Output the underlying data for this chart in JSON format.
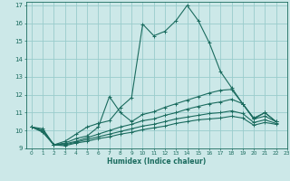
{
  "xlabel": "Humidex (Indice chaleur)",
  "xlim": [
    -0.5,
    23
  ],
  "ylim": [
    9,
    17.2
  ],
  "xticks": [
    0,
    1,
    2,
    3,
    4,
    5,
    6,
    7,
    8,
    9,
    10,
    11,
    12,
    13,
    14,
    15,
    16,
    17,
    18,
    19,
    20,
    21,
    22,
    23
  ],
  "yticks": [
    9,
    10,
    11,
    12,
    13,
    14,
    15,
    16,
    17
  ],
  "bg_color": "#cce8e8",
  "grid_color": "#99cccc",
  "line_color": "#1a6b5e",
  "series": [
    {
      "x": [
        0,
        1,
        2,
        3,
        4,
        5,
        6,
        7,
        8,
        9,
        10,
        11,
        12,
        13,
        14,
        15,
        16,
        17,
        18,
        19,
        20,
        21,
        22
      ],
      "y": [
        10.2,
        10.1,
        9.2,
        9.4,
        9.8,
        10.2,
        10.4,
        10.55,
        11.3,
        11.85,
        15.95,
        15.3,
        15.55,
        16.15,
        17.0,
        16.15,
        14.9,
        13.3,
        12.4,
        11.5,
        10.7,
        11.0,
        10.5
      ]
    },
    {
      "x": [
        0,
        1,
        2,
        3,
        4,
        5,
        6,
        7,
        8,
        9,
        10,
        11,
        12,
        13,
        14,
        15,
        16,
        17,
        18,
        19,
        20,
        21,
        22
      ],
      "y": [
        10.2,
        10.0,
        9.2,
        9.3,
        9.55,
        9.7,
        10.2,
        11.9,
        11.0,
        10.5,
        10.9,
        11.05,
        11.3,
        11.5,
        11.7,
        11.9,
        12.1,
        12.25,
        12.3,
        11.5,
        10.65,
        11.0,
        10.5
      ]
    },
    {
      "x": [
        0,
        1,
        2,
        3,
        4,
        5,
        6,
        7,
        8,
        9,
        10,
        11,
        12,
        13,
        14,
        15,
        16,
        17,
        18,
        19,
        20,
        21,
        22
      ],
      "y": [
        10.2,
        10.0,
        9.2,
        9.25,
        9.4,
        9.6,
        9.8,
        10.0,
        10.2,
        10.35,
        10.55,
        10.65,
        10.85,
        11.0,
        11.2,
        11.35,
        11.5,
        11.6,
        11.75,
        11.5,
        10.65,
        10.8,
        10.5
      ]
    },
    {
      "x": [
        0,
        1,
        2,
        3,
        4,
        5,
        6,
        7,
        8,
        9,
        10,
        11,
        12,
        13,
        14,
        15,
        16,
        17,
        18,
        19,
        20,
        21,
        22
      ],
      "y": [
        10.2,
        9.95,
        9.2,
        9.2,
        9.35,
        9.5,
        9.65,
        9.8,
        9.95,
        10.1,
        10.25,
        10.35,
        10.5,
        10.65,
        10.75,
        10.85,
        10.95,
        11.0,
        11.1,
        10.95,
        10.45,
        10.6,
        10.4
      ]
    },
    {
      "x": [
        0,
        1,
        2,
        3,
        4,
        5,
        6,
        7,
        8,
        9,
        10,
        11,
        12,
        13,
        14,
        15,
        16,
        17,
        18,
        19,
        20,
        21,
        22
      ],
      "y": [
        10.2,
        9.9,
        9.2,
        9.15,
        9.3,
        9.4,
        9.55,
        9.65,
        9.8,
        9.9,
        10.05,
        10.15,
        10.25,
        10.4,
        10.5,
        10.6,
        10.65,
        10.7,
        10.8,
        10.7,
        10.3,
        10.45,
        10.35
      ]
    }
  ]
}
